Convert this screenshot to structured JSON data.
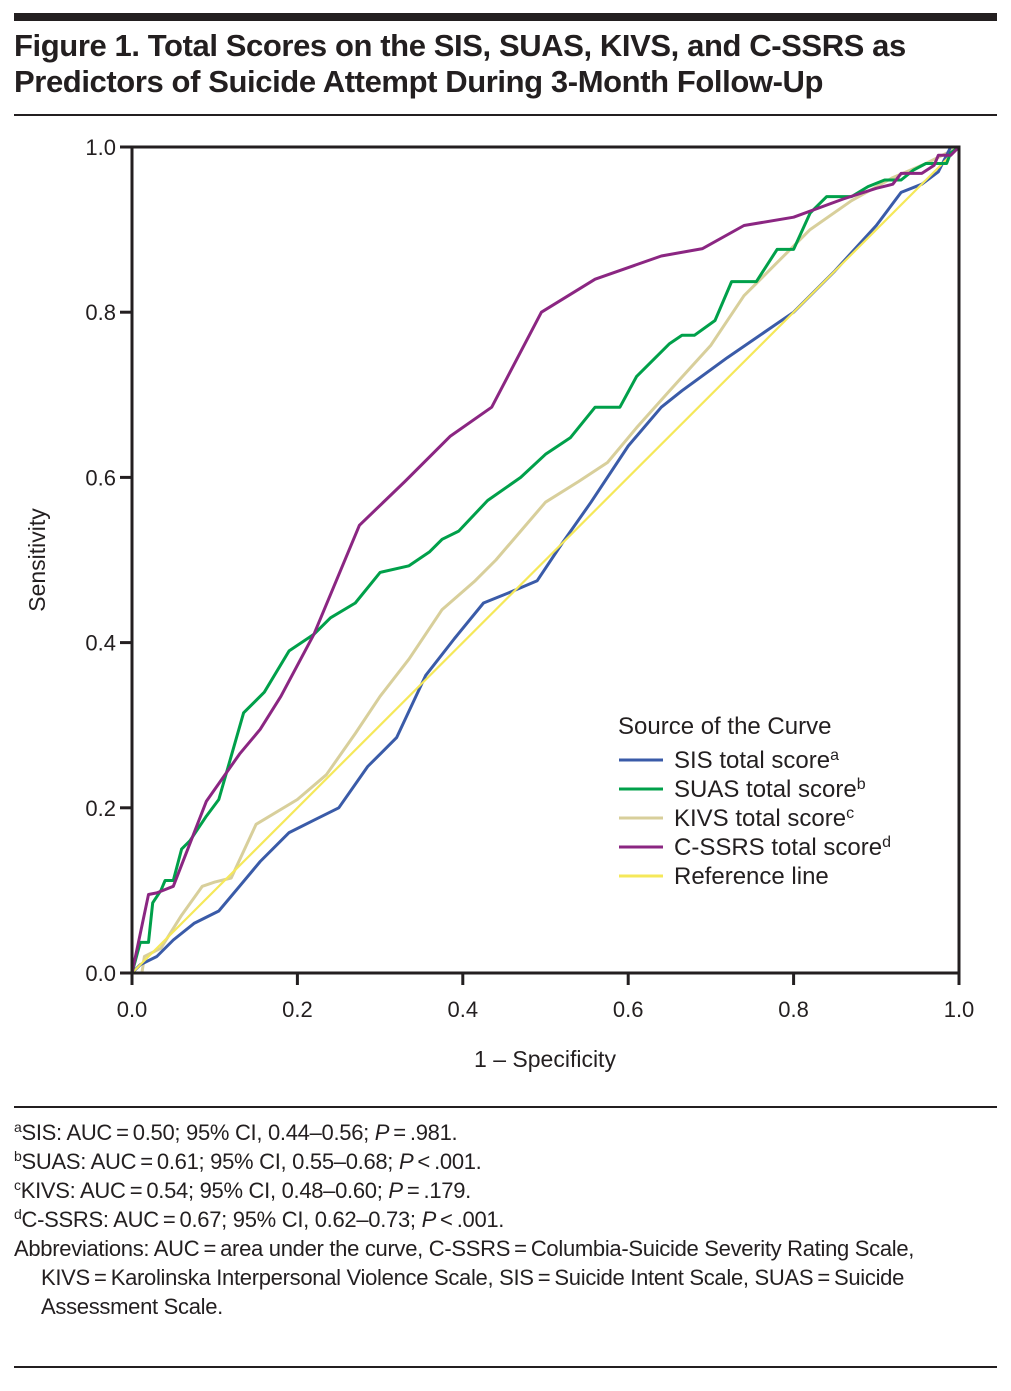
{
  "figure": {
    "title_line1": "Figure 1. Total Scores on the SIS, SUAS, KIVS, and C-SSRS as",
    "title_line2": "Predictors of Suicide Attempt During 3-Month Follow-Up"
  },
  "chart_data": {
    "type": "line",
    "title": "Total Scores on the SIS, SUAS, KIVS, and C-SSRS as Predictors of Suicide Attempt During 3-Month Follow-Up",
    "xlabel": "1 – Specificity",
    "ylabel": "Sensitivity",
    "xlim": [
      0,
      1
    ],
    "ylim": [
      0,
      1
    ],
    "xticks": [
      "0.0",
      "0.2",
      "0.4",
      "0.6",
      "0.8",
      "1.0"
    ],
    "yticks": [
      "0.0",
      "0.2",
      "0.4",
      "0.6",
      "0.8",
      "1.0"
    ],
    "grid": false,
    "legend": {
      "title": "Source of the Curve",
      "placement": "bottom-right"
    },
    "series": [
      {
        "name": "SIS total score",
        "superscript": "a",
        "color": "#3a5ba8",
        "points": [
          [
            0,
            0
          ],
          [
            0.01,
            0.01
          ],
          [
            0.03,
            0.02
          ],
          [
            0.05,
            0.04
          ],
          [
            0.075,
            0.06
          ],
          [
            0.105,
            0.075
          ],
          [
            0.13,
            0.105
          ],
          [
            0.155,
            0.135
          ],
          [
            0.19,
            0.17
          ],
          [
            0.22,
            0.185
          ],
          [
            0.25,
            0.2
          ],
          [
            0.285,
            0.25
          ],
          [
            0.32,
            0.285
          ],
          [
            0.355,
            0.36
          ],
          [
            0.39,
            0.405
          ],
          [
            0.425,
            0.448
          ],
          [
            0.455,
            0.46
          ],
          [
            0.49,
            0.475
          ],
          [
            0.52,
            0.52
          ],
          [
            0.555,
            0.57
          ],
          [
            0.6,
            0.638
          ],
          [
            0.64,
            0.685
          ],
          [
            0.665,
            0.705
          ],
          [
            0.72,
            0.745
          ],
          [
            0.8,
            0.8
          ],
          [
            0.85,
            0.85
          ],
          [
            0.9,
            0.905
          ],
          [
            0.93,
            0.945
          ],
          [
            0.955,
            0.955
          ],
          [
            0.975,
            0.97
          ],
          [
            0.99,
            1.0
          ],
          [
            1.0,
            1.0
          ]
        ]
      },
      {
        "name": "SUAS total score",
        "superscript": "b",
        "color": "#00a04a",
        "points": [
          [
            0,
            0
          ],
          [
            0.01,
            0.037
          ],
          [
            0.02,
            0.037
          ],
          [
            0.025,
            0.085
          ],
          [
            0.035,
            0.1
          ],
          [
            0.04,
            0.112
          ],
          [
            0.05,
            0.112
          ],
          [
            0.06,
            0.15
          ],
          [
            0.07,
            0.16
          ],
          [
            0.09,
            0.19
          ],
          [
            0.105,
            0.21
          ],
          [
            0.135,
            0.315
          ],
          [
            0.16,
            0.34
          ],
          [
            0.19,
            0.39
          ],
          [
            0.22,
            0.41
          ],
          [
            0.24,
            0.43
          ],
          [
            0.27,
            0.448
          ],
          [
            0.3,
            0.485
          ],
          [
            0.335,
            0.493
          ],
          [
            0.36,
            0.51
          ],
          [
            0.375,
            0.525
          ],
          [
            0.395,
            0.535
          ],
          [
            0.43,
            0.572
          ],
          [
            0.47,
            0.6
          ],
          [
            0.5,
            0.628
          ],
          [
            0.53,
            0.648
          ],
          [
            0.56,
            0.685
          ],
          [
            0.59,
            0.685
          ],
          [
            0.61,
            0.722
          ],
          [
            0.65,
            0.762
          ],
          [
            0.665,
            0.772
          ],
          [
            0.68,
            0.772
          ],
          [
            0.705,
            0.79
          ],
          [
            0.725,
            0.837
          ],
          [
            0.755,
            0.837
          ],
          [
            0.78,
            0.876
          ],
          [
            0.8,
            0.876
          ],
          [
            0.82,
            0.92
          ],
          [
            0.84,
            0.94
          ],
          [
            0.87,
            0.94
          ],
          [
            0.89,
            0.952
          ],
          [
            0.91,
            0.96
          ],
          [
            0.93,
            0.96
          ],
          [
            0.945,
            0.972
          ],
          [
            0.96,
            0.98
          ],
          [
            0.985,
            0.98
          ],
          [
            0.99,
            0.993
          ],
          [
            1.0,
            1.0
          ]
        ]
      },
      {
        "name": "KIVS total score",
        "superscript": "c",
        "color": "#d8cf9b",
        "points": [
          [
            0,
            0
          ],
          [
            0.012,
            0
          ],
          [
            0.015,
            0.02
          ],
          [
            0.035,
            0.03
          ],
          [
            0.06,
            0.07
          ],
          [
            0.085,
            0.105
          ],
          [
            0.1,
            0.11
          ],
          [
            0.12,
            0.115
          ],
          [
            0.15,
            0.18
          ],
          [
            0.2,
            0.21
          ],
          [
            0.235,
            0.24
          ],
          [
            0.27,
            0.29
          ],
          [
            0.3,
            0.335
          ],
          [
            0.335,
            0.38
          ],
          [
            0.375,
            0.44
          ],
          [
            0.415,
            0.475
          ],
          [
            0.44,
            0.5
          ],
          [
            0.47,
            0.535
          ],
          [
            0.5,
            0.57
          ],
          [
            0.54,
            0.595
          ],
          [
            0.575,
            0.618
          ],
          [
            0.61,
            0.66
          ],
          [
            0.65,
            0.705
          ],
          [
            0.7,
            0.76
          ],
          [
            0.74,
            0.82
          ],
          [
            0.78,
            0.86
          ],
          [
            0.82,
            0.9
          ],
          [
            0.87,
            0.935
          ],
          [
            0.92,
            0.963
          ],
          [
            0.96,
            0.98
          ],
          [
            1.0,
            1.0
          ]
        ]
      },
      {
        "name": "C-SSRS total score",
        "superscript": "d",
        "color": "#8b2682",
        "points": [
          [
            0,
            0
          ],
          [
            0.02,
            0.095
          ],
          [
            0.03,
            0.097
          ],
          [
            0.05,
            0.105
          ],
          [
            0.09,
            0.208
          ],
          [
            0.13,
            0.265
          ],
          [
            0.155,
            0.295
          ],
          [
            0.18,
            0.335
          ],
          [
            0.22,
            0.41
          ],
          [
            0.275,
            0.542
          ],
          [
            0.33,
            0.595
          ],
          [
            0.385,
            0.65
          ],
          [
            0.435,
            0.685
          ],
          [
            0.495,
            0.8
          ],
          [
            0.56,
            0.84
          ],
          [
            0.64,
            0.868
          ],
          [
            0.69,
            0.877
          ],
          [
            0.74,
            0.905
          ],
          [
            0.8,
            0.915
          ],
          [
            0.86,
            0.937
          ],
          [
            0.9,
            0.95
          ],
          [
            0.92,
            0.955
          ],
          [
            0.93,
            0.968
          ],
          [
            0.955,
            0.968
          ],
          [
            0.97,
            0.978
          ],
          [
            0.975,
            0.99
          ],
          [
            0.99,
            0.99
          ],
          [
            1.0,
            1.0
          ]
        ]
      },
      {
        "name": "Reference line",
        "superscript": "",
        "color": "#f5e85a",
        "points": [
          [
            0,
            0
          ],
          [
            1,
            1
          ]
        ]
      }
    ]
  },
  "footnotes": [
    {
      "sup": "a",
      "pre": "SIS: AUC = 0.50; 95% CI, 0.44–0.56; ",
      "p_label": "P",
      "post": " = .981."
    },
    {
      "sup": "b",
      "pre": "SUAS: AUC = 0.61; 95% CI, 0.55–0.68; ",
      "p_label": "P",
      "post": " < .001."
    },
    {
      "sup": "c",
      "pre": "KIVS: AUC = 0.54; 95% CI, 0.48–0.60; ",
      "p_label": "P",
      "post": " = .179."
    },
    {
      "sup": "d",
      "pre": "C-SSRS: AUC = 0.67; 95% CI, 0.62–0.73; ",
      "p_label": "P",
      "post": " < .001."
    }
  ],
  "abbreviations": "Abbreviations: AUC = area under the curve, C-SSRS = Columbia-Suicide Severity Rating Scale, KIVS = Karolinska Interpersonal Violence Scale, SIS = Suicide Intent Scale, SUAS = Suicide Assessment Scale."
}
